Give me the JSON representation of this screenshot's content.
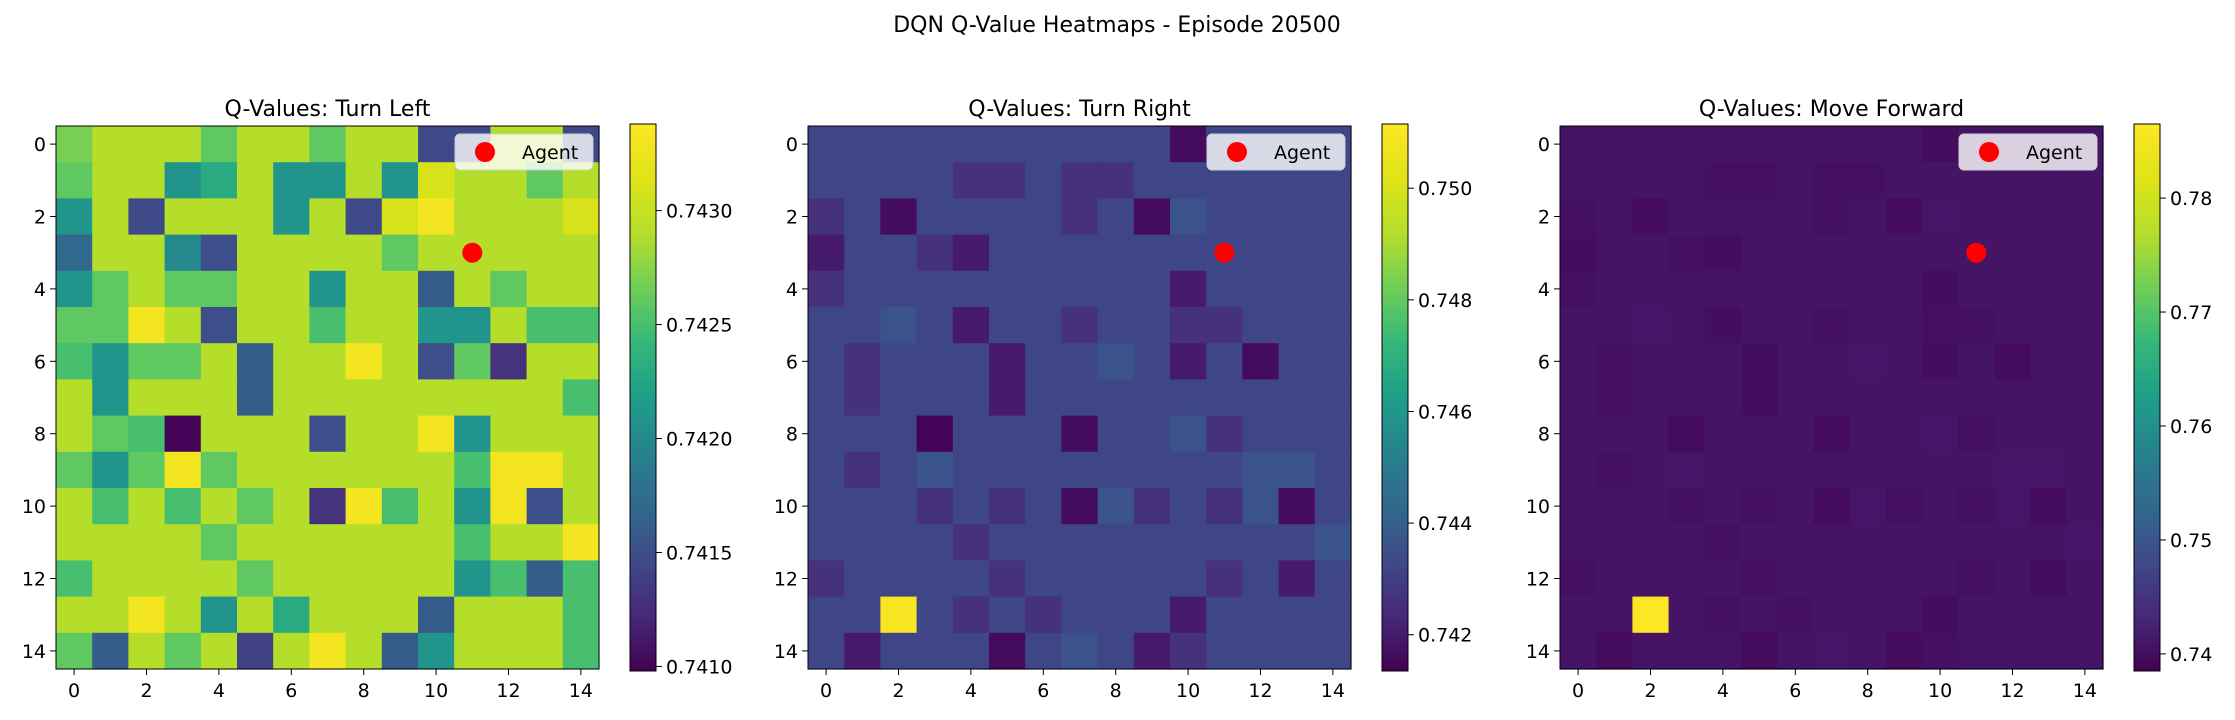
{
  "figure": {
    "suptitle": "DQN Q-Value Heatmaps - Episode 20500"
  },
  "chart_data": [
    {
      "type": "heatmap",
      "title": "Q-Values: Turn Left",
      "xlabel": "",
      "ylabel": "",
      "x_ticks": [
        "0",
        "2",
        "4",
        "6",
        "8",
        "10",
        "12",
        "14"
      ],
      "y_ticks": [
        "0",
        "2",
        "4",
        "6",
        "8",
        "10",
        "12",
        "14"
      ],
      "grid_size": 15,
      "colormap": "viridis",
      "colorbar": {
        "min": 0.74098,
        "max": 0.74338,
        "ticks": [
          "0.7410",
          "0.7415",
          "0.7420",
          "0.7425",
          "0.7430"
        ]
      },
      "agent": {
        "x": 11,
        "y": 3,
        "label": "Agent",
        "color": "#ff0000"
      },
      "legend": "top-right",
      "values": [
        [
          0.74269,
          0.7429,
          0.7429,
          0.7429,
          0.7426,
          0.7429,
          0.7429,
          0.7426,
          0.7429,
          0.7429,
          0.74145,
          0.74145,
          0.7429,
          0.7429,
          0.74145
        ],
        [
          0.7426,
          0.7429,
          0.7429,
          0.7421,
          0.7423,
          0.7429,
          0.7421,
          0.7421,
          0.7429,
          0.7421,
          0.7431,
          0.7429,
          0.7429,
          0.7426,
          0.7429
        ],
        [
          0.7421,
          0.7429,
          0.74145,
          0.7429,
          0.7429,
          0.7429,
          0.7421,
          0.7429,
          0.74145,
          0.7431,
          0.7433,
          0.7429,
          0.7429,
          0.7429,
          0.7431
        ],
        [
          0.7417,
          0.7429,
          0.7429,
          0.742,
          0.7415,
          0.7429,
          0.7429,
          0.7429,
          0.7429,
          0.7426,
          0.7429,
          0.7429,
          0.7429,
          0.7429,
          0.7429
        ],
        [
          0.7421,
          0.7426,
          0.7429,
          0.7426,
          0.7426,
          0.7429,
          0.7429,
          0.7421,
          0.7429,
          0.7429,
          0.7416,
          0.7429,
          0.7426,
          0.7429,
          0.7429
        ],
        [
          0.7426,
          0.7426,
          0.7433,
          0.7429,
          0.7415,
          0.7429,
          0.7429,
          0.7425,
          0.7429,
          0.7429,
          0.7421,
          0.7421,
          0.7429,
          0.7425,
          0.7425
        ],
        [
          0.7425,
          0.7421,
          0.7426,
          0.7426,
          0.7429,
          0.7416,
          0.7429,
          0.7429,
          0.7433,
          0.7429,
          0.7415,
          0.7426,
          0.7413,
          0.7429,
          0.7429
        ],
        [
          0.7429,
          0.7421,
          0.7429,
          0.7429,
          0.7429,
          0.7416,
          0.7429,
          0.7429,
          0.7429,
          0.7429,
          0.7429,
          0.7429,
          0.7429,
          0.7429,
          0.7425
        ],
        [
          0.7429,
          0.7426,
          0.7425,
          0.741,
          0.7429,
          0.7429,
          0.7429,
          0.7415,
          0.7429,
          0.7429,
          0.7433,
          0.7421,
          0.7429,
          0.7429,
          0.7429
        ],
        [
          0.7426,
          0.7421,
          0.7426,
          0.7433,
          0.7426,
          0.7429,
          0.7429,
          0.7429,
          0.7429,
          0.7429,
          0.7429,
          0.7425,
          0.7433,
          0.7433,
          0.7429
        ],
        [
          0.7429,
          0.7425,
          0.7429,
          0.7425,
          0.7429,
          0.7426,
          0.7429,
          0.7413,
          0.7433,
          0.7425,
          0.7429,
          0.7421,
          0.7433,
          0.7415,
          0.7429
        ],
        [
          0.7429,
          0.7429,
          0.7429,
          0.7429,
          0.7426,
          0.7429,
          0.7429,
          0.7429,
          0.7429,
          0.7429,
          0.7429,
          0.7425,
          0.7429,
          0.7429,
          0.7433
        ],
        [
          0.7425,
          0.7429,
          0.7429,
          0.7429,
          0.7429,
          0.7426,
          0.7429,
          0.7429,
          0.7429,
          0.7429,
          0.7429,
          0.7421,
          0.7425,
          0.7416,
          0.7425
        ],
        [
          0.7429,
          0.7429,
          0.7433,
          0.7429,
          0.7421,
          0.7429,
          0.7423,
          0.7429,
          0.7429,
          0.7429,
          0.7416,
          0.7429,
          0.7429,
          0.7429,
          0.7425
        ],
        [
          0.7426,
          0.7416,
          0.7429,
          0.7426,
          0.7429,
          0.7414,
          0.7429,
          0.7433,
          0.7429,
          0.7416,
          0.7421,
          0.7429,
          0.7429,
          0.7429,
          0.7425
        ]
      ]
    },
    {
      "type": "heatmap",
      "title": "Q-Values: Turn Right",
      "xlabel": "",
      "ylabel": "",
      "x_ticks": [
        "0",
        "2",
        "4",
        "6",
        "8",
        "10",
        "12",
        "14"
      ],
      "y_ticks": [
        "0",
        "2",
        "4",
        "6",
        "8",
        "10",
        "12",
        "14"
      ],
      "grid_size": 15,
      "colormap": "viridis",
      "colorbar": {
        "min": 0.74135,
        "max": 0.75115,
        "ticks": [
          "0.742",
          "0.744",
          "0.746",
          "0.748",
          "0.750"
        ]
      },
      "agent": {
        "x": 11,
        "y": 3,
        "label": "Agent",
        "color": "#ff0000"
      },
      "legend": "top-right",
      "values": [
        [
          0.7432,
          0.7432,
          0.7432,
          0.7432,
          0.7432,
          0.7432,
          0.7432,
          0.7432,
          0.7432,
          0.7432,
          0.7416,
          0.7432,
          0.7432,
          0.7432,
          0.7432
        ],
        [
          0.7432,
          0.7432,
          0.7432,
          0.7432,
          0.7426,
          0.7426,
          0.7432,
          0.7426,
          0.7426,
          0.7432,
          0.7432,
          0.7432,
          0.7432,
          0.7432,
          0.7432
        ],
        [
          0.7426,
          0.7432,
          0.7416,
          0.7432,
          0.7432,
          0.7432,
          0.7432,
          0.7426,
          0.7432,
          0.7416,
          0.7436,
          0.7432,
          0.7432,
          0.7432,
          0.7432
        ],
        [
          0.742,
          0.7432,
          0.7432,
          0.7426,
          0.742,
          0.7432,
          0.7432,
          0.7432,
          0.7432,
          0.7432,
          0.7432,
          0.7432,
          0.7432,
          0.7432,
          0.7432
        ],
        [
          0.7426,
          0.7432,
          0.7432,
          0.7432,
          0.7432,
          0.7432,
          0.7432,
          0.7432,
          0.7432,
          0.7432,
          0.742,
          0.7432,
          0.7432,
          0.7432,
          0.7432
        ],
        [
          0.7432,
          0.7432,
          0.7436,
          0.7432,
          0.742,
          0.7432,
          0.7432,
          0.7426,
          0.7432,
          0.7432,
          0.7426,
          0.7426,
          0.7432,
          0.7432,
          0.7432
        ],
        [
          0.7432,
          0.7426,
          0.7432,
          0.7432,
          0.7432,
          0.742,
          0.7432,
          0.7432,
          0.7436,
          0.7432,
          0.742,
          0.7432,
          0.7416,
          0.7432,
          0.7432
        ],
        [
          0.7432,
          0.7426,
          0.7432,
          0.7432,
          0.7432,
          0.742,
          0.7432,
          0.7432,
          0.7432,
          0.7432,
          0.7432,
          0.7432,
          0.7432,
          0.7432,
          0.7432
        ],
        [
          0.7432,
          0.7432,
          0.7432,
          0.7414,
          0.7432,
          0.7432,
          0.7432,
          0.7416,
          0.7432,
          0.7432,
          0.7436,
          0.7426,
          0.7432,
          0.7432,
          0.7432
        ],
        [
          0.7432,
          0.7426,
          0.7432,
          0.7436,
          0.7432,
          0.7432,
          0.7432,
          0.7432,
          0.7432,
          0.7432,
          0.7432,
          0.7432,
          0.7436,
          0.7436,
          0.7432
        ],
        [
          0.7432,
          0.7432,
          0.7432,
          0.7426,
          0.7432,
          0.7426,
          0.7432,
          0.7416,
          0.7436,
          0.7426,
          0.7432,
          0.7426,
          0.7436,
          0.7416,
          0.7432
        ],
        [
          0.7432,
          0.7432,
          0.7432,
          0.7432,
          0.7426,
          0.7432,
          0.7432,
          0.7432,
          0.7432,
          0.7432,
          0.7432,
          0.7432,
          0.7432,
          0.7432,
          0.7436
        ],
        [
          0.7426,
          0.7432,
          0.7432,
          0.7432,
          0.7432,
          0.7426,
          0.7432,
          0.7432,
          0.7432,
          0.7432,
          0.7432,
          0.7426,
          0.7432,
          0.742,
          0.7432
        ],
        [
          0.7432,
          0.7432,
          0.751,
          0.7432,
          0.7426,
          0.7432,
          0.7426,
          0.7432,
          0.7432,
          0.7432,
          0.742,
          0.7432,
          0.7432,
          0.7432,
          0.7432
        ],
        [
          0.7432,
          0.742,
          0.7432,
          0.7432,
          0.7432,
          0.7416,
          0.7432,
          0.7436,
          0.7432,
          0.742,
          0.7426,
          0.7432,
          0.7432,
          0.7432,
          0.7432
        ]
      ]
    },
    {
      "type": "heatmap",
      "title": "Q-Values: Move Forward",
      "xlabel": "",
      "ylabel": "",
      "x_ticks": [
        "0",
        "2",
        "4",
        "6",
        "8",
        "10",
        "12",
        "14"
      ],
      "y_ticks": [
        "0",
        "2",
        "4",
        "6",
        "8",
        "10",
        "12",
        "14"
      ],
      "grid_size": 15,
      "colormap": "viridis",
      "colorbar": {
        "min": 0.7385,
        "max": 0.7865,
        "ticks": [
          "0.74",
          "0.75",
          "0.76",
          "0.77",
          "0.78"
        ]
      },
      "agent": {
        "x": 11,
        "y": 3,
        "label": "Agent",
        "color": "#ff0000"
      },
      "legend": "top-right",
      "values": [
        [
          0.7408,
          0.7408,
          0.7408,
          0.7408,
          0.7408,
          0.7408,
          0.7408,
          0.7408,
          0.7408,
          0.7408,
          0.7398,
          0.7408,
          0.7408,
          0.7408,
          0.7408
        ],
        [
          0.7408,
          0.7408,
          0.7408,
          0.7408,
          0.7404,
          0.7404,
          0.7408,
          0.7404,
          0.7404,
          0.7408,
          0.7408,
          0.7408,
          0.7408,
          0.7408,
          0.7408
        ],
        [
          0.7404,
          0.7408,
          0.7398,
          0.7408,
          0.7408,
          0.7408,
          0.7408,
          0.7404,
          0.7408,
          0.7398,
          0.741,
          0.7408,
          0.7408,
          0.7408,
          0.7408
        ],
        [
          0.74,
          0.7408,
          0.7408,
          0.7404,
          0.74,
          0.7408,
          0.7408,
          0.7408,
          0.7408,
          0.7408,
          0.7408,
          0.7408,
          0.7408,
          0.7408,
          0.7408
        ],
        [
          0.7404,
          0.7408,
          0.7408,
          0.7408,
          0.7408,
          0.7408,
          0.7408,
          0.7408,
          0.7408,
          0.7408,
          0.74,
          0.7408,
          0.7408,
          0.7408,
          0.7408
        ],
        [
          0.7408,
          0.7408,
          0.741,
          0.7408,
          0.74,
          0.7408,
          0.7408,
          0.7404,
          0.7408,
          0.7408,
          0.7404,
          0.7404,
          0.7408,
          0.7408,
          0.7408
        ],
        [
          0.7408,
          0.7404,
          0.7408,
          0.7408,
          0.7408,
          0.74,
          0.7408,
          0.7408,
          0.741,
          0.7408,
          0.74,
          0.7408,
          0.7398,
          0.7408,
          0.7408
        ],
        [
          0.7408,
          0.7404,
          0.7408,
          0.7408,
          0.7408,
          0.74,
          0.7408,
          0.7408,
          0.7408,
          0.7408,
          0.7408,
          0.7408,
          0.7408,
          0.7408,
          0.7408
        ],
        [
          0.7408,
          0.7408,
          0.7408,
          0.7398,
          0.7408,
          0.7408,
          0.7408,
          0.7398,
          0.7408,
          0.7408,
          0.741,
          0.7404,
          0.7408,
          0.7408,
          0.7408
        ],
        [
          0.7408,
          0.7404,
          0.7408,
          0.741,
          0.7408,
          0.7408,
          0.7408,
          0.7408,
          0.7408,
          0.7408,
          0.7408,
          0.7408,
          0.741,
          0.741,
          0.7408
        ],
        [
          0.7408,
          0.7408,
          0.7408,
          0.7404,
          0.7408,
          0.7404,
          0.7408,
          0.7398,
          0.741,
          0.7404,
          0.7408,
          0.7404,
          0.741,
          0.7398,
          0.7408
        ],
        [
          0.7408,
          0.7408,
          0.7408,
          0.7408,
          0.7404,
          0.7408,
          0.7408,
          0.7408,
          0.7408,
          0.7408,
          0.7408,
          0.7408,
          0.7408,
          0.7408,
          0.741
        ],
        [
          0.7404,
          0.7408,
          0.7408,
          0.7408,
          0.7408,
          0.7404,
          0.7408,
          0.7408,
          0.7408,
          0.7408,
          0.7408,
          0.7404,
          0.7408,
          0.7398,
          0.7408
        ],
        [
          0.7408,
          0.7408,
          0.7865,
          0.7408,
          0.7404,
          0.7408,
          0.7404,
          0.7408,
          0.7408,
          0.7408,
          0.74,
          0.7408,
          0.7408,
          0.7408,
          0.7408
        ],
        [
          0.7408,
          0.7398,
          0.7408,
          0.7408,
          0.7408,
          0.7398,
          0.7408,
          0.741,
          0.7408,
          0.7398,
          0.7404,
          0.7408,
          0.7408,
          0.7408,
          0.7408
        ]
      ]
    }
  ]
}
